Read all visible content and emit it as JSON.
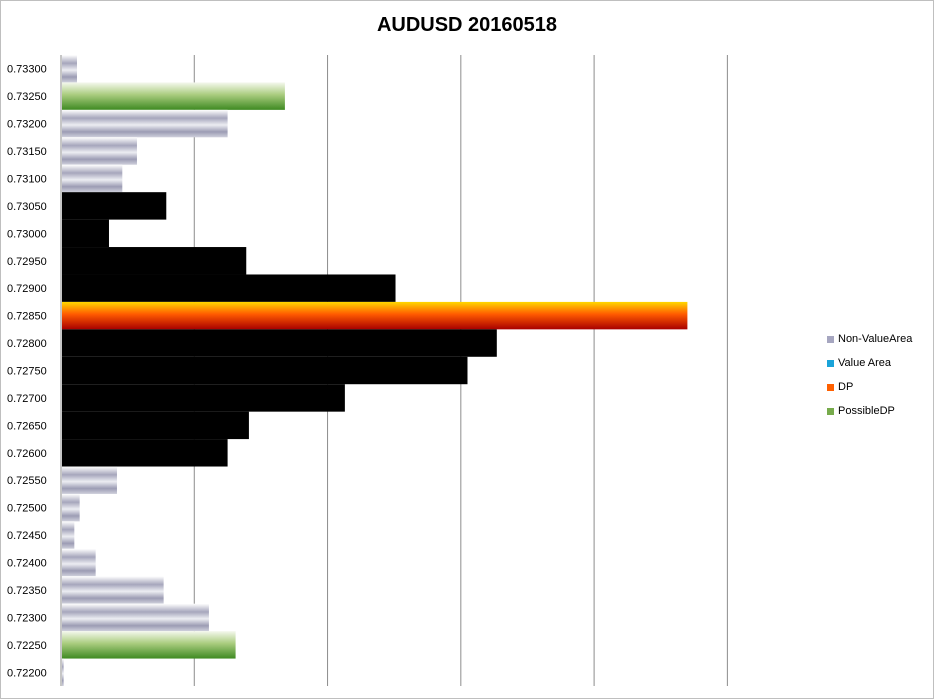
{
  "chart_data": {
    "type": "bar",
    "orientation": "horizontal",
    "title": "AUDUSD 20160518",
    "xlabel": "",
    "ylabel": "",
    "categories": [
      "0.73300",
      "0.73250",
      "0.73200",
      "0.73150",
      "0.73100",
      "0.73050",
      "0.73000",
      "0.72950",
      "0.72900",
      "0.72850",
      "0.72800",
      "0.72750",
      "0.72700",
      "0.72650",
      "0.72600",
      "0.72550",
      "0.72500",
      "0.72450",
      "0.72400",
      "0.72350",
      "0.72300",
      "0.72250",
      "0.72200"
    ],
    "values": [
      12,
      168,
      125,
      57,
      46,
      79,
      36,
      139,
      251,
      470,
      327,
      305,
      213,
      141,
      125,
      42,
      14,
      10,
      26,
      77,
      111,
      131,
      2
    ],
    "classes": [
      "Non-ValueArea",
      "PossibleDP",
      "Non-ValueArea",
      "Non-ValueArea",
      "Non-ValueArea",
      "Value Area",
      "Value Area",
      "Value Area",
      "Value Area",
      "DP",
      "Value Area",
      "Value Area",
      "Value Area",
      "Value Area",
      "Value Area",
      "Non-ValueArea",
      "Non-ValueArea",
      "Non-ValueArea",
      "Non-ValueArea",
      "Non-ValueArea",
      "Non-ValueArea",
      "PossibleDP",
      "Non-ValueArea"
    ],
    "xlim": [
      0,
      580
    ],
    "gridlines_at": [
      100,
      200,
      300,
      400,
      500
    ],
    "grid": true,
    "legend_position": "right",
    "legend": [
      {
        "name": "Non-ValueArea",
        "class": "Non-ValueArea",
        "color": "#a6a6c0"
      },
      {
        "name": "Value Area",
        "class": "Value Area",
        "color": "#1aa3d9"
      },
      {
        "name": "DP",
        "class": "DP",
        "color": "#ff6000"
      },
      {
        "name": "PossibleDP",
        "class": "PossibleDP",
        "color": "#77ab4c"
      }
    ]
  }
}
